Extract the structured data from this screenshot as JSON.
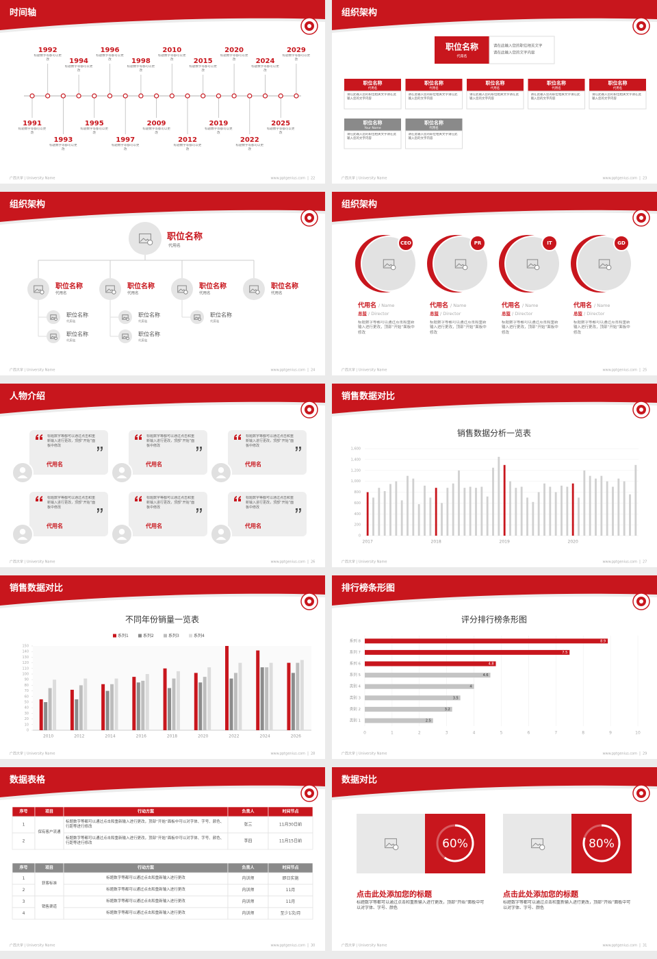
{
  "footer_left": "广西大学 | University Name",
  "footer_site": "www.pptgenius.com",
  "slides": [
    {
      "title": "时间轴",
      "page": "22",
      "events": [
        {
          "year": "1991",
          "text": "标题数字等都可以更改"
        },
        {
          "year": "1992",
          "text": "标题数字等都可以更改"
        },
        {
          "year": "1993",
          "text": "标题数字等都可以更改"
        },
        {
          "year": "1994",
          "text": "标题数字等都可以更改"
        },
        {
          "year": "1995",
          "text": "标题数字等都可以更改"
        },
        {
          "year": "1996",
          "text": "标题数字等都可以更改"
        },
        {
          "year": "1997",
          "text": "标题数字等都可以更改"
        },
        {
          "year": "1998",
          "text": "标题数字等都可以更改"
        },
        {
          "year": "2009",
          "text": "标题数字等都可以更改"
        },
        {
          "year": "2010",
          "text": "标题数字等都可以更改"
        },
        {
          "year": "2012",
          "text": "标题数字等都可以更改"
        },
        {
          "year": "2015",
          "text": "标题数字等都可以更改"
        },
        {
          "year": "2019",
          "text": "标题数字等都可以更改"
        },
        {
          "year": "2020",
          "text": "标题数字等都可以更改"
        },
        {
          "year": "2022",
          "text": "标题数字等都可以更改"
        },
        {
          "year": "2024",
          "text": "标题数字等都可以更改"
        },
        {
          "year": "2025",
          "text": "标题数字等都可以更改"
        },
        {
          "year": "2029",
          "text": "标题数字等都可以更改"
        }
      ]
    },
    {
      "title": "组织架构",
      "page": "23",
      "top": {
        "title": "职位名称",
        "sub": "代用名",
        "desc": [
          "请在此输入您的职位相关文字",
          "请在此输入您的文字内容"
        ]
      },
      "cards": [
        {
          "title": "职位名称",
          "sub": "代用名",
          "text": "请在此输入您的职位相关文字请在此输入您的文字内容",
          "color": "#c8161d"
        },
        {
          "title": "职位名称",
          "sub": "代用名",
          "text": "请在此输入您的职位相关文字请在此输入您的文字内容",
          "color": "#c8161d"
        },
        {
          "title": "职位名称",
          "sub": "代用名",
          "text": "请在此输入您的职位相关文字请在此输入您的文字内容",
          "color": "#c8161d"
        },
        {
          "title": "职位名称",
          "sub": "代用名",
          "text": "请在此输入您的职位相关文字请在此输入您的文字内容",
          "color": "#c8161d"
        },
        {
          "title": "职位名称",
          "sub": "代用名",
          "text": "请在此输入您的职位相关文字请在此输入您的文字内容",
          "color": "#c8161d"
        },
        {
          "title": "职位名称",
          "sub": "Your Name",
          "text": "请在此输入您的职位相关文字请在此输入您的文字内容",
          "color": "#8a8a8a"
        },
        {
          "title": "职位名称",
          "sub": "代用名",
          "text": "请在此输入您的职位相关文字请在此输入您的文字内容",
          "color": "#8a8a8a"
        }
      ]
    },
    {
      "title": "组织架构",
      "page": "24",
      "top": {
        "title": "职位名称",
        "sub": "代用名"
      },
      "level2": [
        {
          "title": "职位名称",
          "sub": "代用名",
          "children": [
            {
              "title": "职位名称",
              "sub": "代用名"
            },
            {
              "title": "职位名称",
              "sub": "代用名"
            }
          ]
        },
        {
          "title": "职位名称",
          "sub": "代用名",
          "children": [
            {
              "title": "职位名称",
              "sub": "代用名"
            },
            {
              "title": "职位名称",
              "sub": "代用名"
            }
          ]
        },
        {
          "title": "职位名称",
          "sub": "代用名",
          "children": [
            {
              "title": "职位名称",
              "sub": "代用名"
            }
          ]
        },
        {
          "title": "职位名称",
          "sub": "代用名",
          "children": []
        }
      ]
    },
    {
      "title": "组织架构",
      "page": "25",
      "people": [
        {
          "badge": "CEO",
          "name": "代用名",
          "name_en": "/ Name",
          "role": "总监",
          "role_en": "/ Director",
          "text": "标题数字等都可以通过点击和重新输入进行更改，顶部“开始”面板中修改"
        },
        {
          "badge": "PR",
          "name": "代用名",
          "name_en": "/ Name",
          "role": "总监",
          "role_en": "/ Director",
          "text": "标题数字等都可以通过点击和重新输入进行更改，顶部“开始”面板中修改"
        },
        {
          "badge": "IT",
          "name": "代用名",
          "name_en": "/ Name",
          "role": "总监",
          "role_en": "/ Director",
          "text": "标题数字等都可以通过点击和重新输入进行更改，顶部“开始”面板中修改"
        },
        {
          "badge": "GD",
          "name": "代用名",
          "name_en": "/ Name",
          "role": "总监",
          "role_en": "/ Director",
          "text": "标题数字等都可以通过点击和重新输入进行更改，顶部“开始”面板中修改"
        }
      ]
    },
    {
      "title": "人物介绍",
      "page": "26",
      "cards": [
        {
          "text": "标题数字等都可以通过点击和重新输入进行更改，顶部“开始”面板中修改",
          "name": "代用名"
        },
        {
          "text": "标题数字等都可以通过点击和重新输入进行更改，顶部“开始”面板中修改",
          "name": "代用名"
        },
        {
          "text": "标题数字等都可以通过点击和重新输入进行更改，顶部“开始”面板中修改",
          "name": "代用名"
        },
        {
          "text": "标题数字等都可以通过点击和重新输入进行更改，顶部“开始”面板中修改",
          "name": "代用名"
        },
        {
          "text": "标题数字等都可以通过点击和重新输入进行更改，顶部“开始”面板中修改",
          "name": "代用名"
        },
        {
          "text": "标题数字等都可以通过点击和重新输入进行更改，顶部“开始”面板中修改",
          "name": "代用名"
        }
      ]
    },
    {
      "title": "销售数据对比",
      "page": "27",
      "chart_data": {
        "type": "bar",
        "title": "销售数据分析一览表",
        "categories": [
          "2017",
          null,
          null,
          null,
          null,
          null,
          null,
          null,
          null,
          null,
          null,
          null,
          "2018",
          null,
          null,
          null,
          null,
          null,
          null,
          null,
          null,
          null,
          null,
          null,
          "2019",
          null,
          null,
          null,
          null,
          null,
          null,
          null,
          null,
          null,
          null,
          null,
          "2020",
          null,
          null,
          null,
          null,
          null,
          null,
          null,
          null,
          null,
          null,
          null
        ],
        "values": [
          800,
          700,
          880,
          820,
          950,
          1000,
          650,
          1100,
          1050,
          580,
          920,
          700,
          880,
          600,
          880,
          960,
          1200,
          880,
          900,
          880,
          900,
          720,
          1250,
          1450,
          1300,
          1000,
          880,
          900,
          700,
          620,
          800,
          960,
          900,
          800,
          920,
          900,
          960,
          700,
          1200,
          1100,
          1050,
          1100,
          1000,
          900,
          1050,
          1000,
          760,
          1300
        ],
        "color": "#d0d0d0",
        "highlight_color": "#c8161d",
        "ylim": [
          0,
          1600
        ],
        "yticks": [
          0,
          200,
          400,
          600,
          800,
          {
            "value": 1000,
            "label": "1,000"
          },
          {
            "value": 1200,
            "label": "1,200"
          },
          {
            "value": 1400,
            "label": "1,400"
          },
          {
            "value": 1600,
            "label": "1,600"
          }
        ],
        "grid": true
      }
    },
    {
      "title": "销售数据对比",
      "page": "28",
      "chart_data": {
        "type": "grouped_bar",
        "title": "不同年份销量一览表",
        "categories": [
          "2010",
          "2012",
          "2014",
          "2016",
          "2018",
          "2020",
          "2022",
          "2024",
          "2026"
        ],
        "series": [
          {
            "name": "系列1",
            "color": "#c8161d",
            "values": [
              55,
              72,
              82,
              95,
              110,
              102,
              150,
              142,
              120
            ]
          },
          {
            "name": "系列2",
            "color": "#8c8c8c",
            "values": [
              50,
              55,
              70,
              85,
              75,
              85,
              92,
              112,
              102
            ]
          },
          {
            "name": "系列3",
            "color": "#bdbdbd",
            "values": [
              75,
              80,
              82,
              88,
              92,
              95,
              102,
              112,
              120
            ]
          },
          {
            "name": "系列4",
            "color": "#dcdcdc",
            "values": [
              90,
              92,
              92,
              100,
              105,
              112,
              120,
              120,
              125
            ]
          }
        ],
        "ylim": [
          0,
          150
        ],
        "yticks": [
          0,
          10,
          20,
          30,
          40,
          50,
          60,
          70,
          80,
          90,
          100,
          110,
          120,
          130,
          140,
          150
        ]
      }
    },
    {
      "title": "排行榜条形图",
      "page": "29",
      "chart_data": {
        "type": "hbar",
        "title": "评分排行榜条形图",
        "categories": [
          "类别 1",
          "类别 2",
          "类别 3",
          "类别 4",
          "系列 5",
          "系列 6",
          "系列 7",
          "系列 8"
        ],
        "values": [
          2.5,
          3.2,
          3.5,
          4,
          4.6,
          4.8,
          7.5,
          8.9
        ],
        "colors": [
          "#c4c4c4",
          "#c4c4c4",
          "#c4c4c4",
          "#c4c4c4",
          "#c4c4c4",
          "#c8161d",
          "#c8161d",
          "#c8161d"
        ],
        "xlim": [
          0,
          10
        ],
        "xticks": [
          0,
          1,
          2,
          3,
          4,
          5,
          6,
          7,
          8,
          9,
          10
        ],
        "grid": true
      }
    },
    {
      "title": "数据表格",
      "page": "30",
      "table1": {
        "header": [
          "序号",
          "项目",
          "行动方案",
          "负责人",
          "时间节点"
        ],
        "groups": [
          {
            "project": "保有客户流通",
            "rows": [
              [
                "1",
                "标题数字等都可以通过点击和重新输入进行更改，顶部“开始”面板中可以对字体、字号、颜色、行距等进行修改",
                "张三",
                "11月30日前"
              ],
              [
                "2",
                "标题数字等都可以通过点击和重新输入进行更改，顶部“开始”面板中可以对字体、字号、颜色、行距等进行修改",
                "李四",
                "11月15日前"
              ]
            ]
          }
        ]
      },
      "table2": {
        "header": [
          "序号",
          "项目",
          "行动方案",
          "负责人",
          "时间节点"
        ],
        "groups": [
          {
            "project": "获客标准",
            "rows": [
              [
                "1",
                "标题数字等都可以通过点击和重新输入进行更改",
                "内训师",
                "即日实施"
              ],
              [
                "2",
                "标题数字等都可以通过点击和重新输入进行更改",
                "内训师",
                "11月"
              ]
            ]
          },
          {
            "project": "销售渠道",
            "rows": [
              [
                "3",
                "标题数字等都可以通过点击和重新输入进行更改",
                "内训师",
                "11月"
              ],
              [
                "4",
                "标题数字等都可以通过点击和重新输入进行更改",
                "内训师",
                "至少1次/月"
              ]
            ]
          }
        ]
      }
    },
    {
      "title": "数据对比",
      "page": "31",
      "cards": [
        {
          "percent": 60,
          "label": "60%",
          "title": "点击此处添加您的标题",
          "text": "标题数字等都可以通过点击和重新输入进行更改，顶部“开始”面板中可以对字体、字号、颜色"
        },
        {
          "percent": 80,
          "label": "80%",
          "title": "点击此处添加您的标题",
          "text": "标题数字等都可以通过点击和重新输入进行更改，顶部“开始”面板中可以对字体、字号、颜色"
        }
      ]
    }
  ]
}
